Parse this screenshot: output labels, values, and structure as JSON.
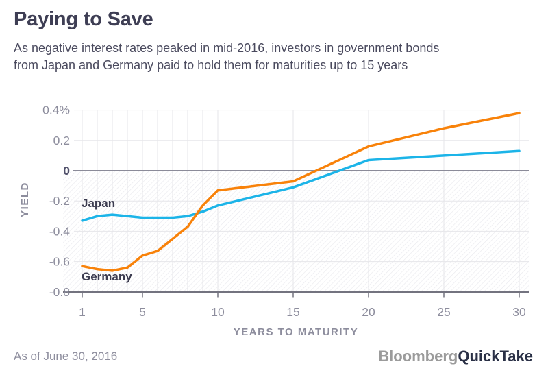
{
  "header": {
    "title": "Paying to Save",
    "subtitle_line1": "As negative interest rates peaked in mid-2016, investors in government bonds",
    "subtitle_line2": "from Japan and Germany paid to hold them for maturities up to 15 years"
  },
  "chart_data": {
    "type": "line",
    "title": "Paying to Save",
    "xlabel": "YEARS TO MATURITY",
    "ylabel": "YIELD",
    "y_unit": "percent",
    "xlim": [
      1,
      30
    ],
    "ylim": [
      -0.8,
      0.4
    ],
    "x_ticks": [
      1,
      5,
      10,
      15,
      20,
      25,
      30
    ],
    "x_gridlines": [
      1,
      2,
      3,
      4,
      5,
      6,
      7,
      8,
      9,
      10,
      15,
      20,
      25,
      30
    ],
    "y_ticks": [
      {
        "label": "0.4%",
        "value": 0.4
      },
      {
        "label": "0.2",
        "value": 0.2
      },
      {
        "label": "0",
        "value": 0,
        "emphasis": true
      },
      {
        "label": "-0.2",
        "value": -0.2
      },
      {
        "label": "-0.4",
        "value": -0.4
      },
      {
        "label": "-0.6",
        "value": -0.6
      },
      {
        "label": "-0.8",
        "value": -0.8
      }
    ],
    "x": [
      1,
      2,
      3,
      4,
      5,
      6,
      7,
      8,
      9,
      10,
      15,
      20,
      25,
      30
    ],
    "series": [
      {
        "name": "Japan",
        "color": "#1cb4e8",
        "values": [
          -0.33,
          -0.3,
          -0.29,
          -0.3,
          -0.31,
          -0.31,
          -0.31,
          -0.3,
          -0.27,
          -0.23,
          -0.11,
          0.07,
          0.1,
          0.13
        ]
      },
      {
        "name": "Germany",
        "color": "#f8820a",
        "values": [
          -0.63,
          -0.65,
          -0.66,
          -0.64,
          -0.56,
          -0.53,
          -0.45,
          -0.37,
          -0.23,
          -0.13,
          -0.07,
          0.16,
          0.28,
          0.38
        ]
      }
    ],
    "negative_region_hatched": true,
    "grid": true,
    "legend_position": "inline-labels"
  },
  "footer": {
    "as_of": "As of June 30, 2016",
    "brand_primary": "Bloomberg",
    "brand_secondary": "QuickTake"
  },
  "colors": {
    "japan_line": "#1cb4e8",
    "germany_line": "#f8820a",
    "gridline": "#e6e6ea",
    "zero_line": "#8b8b99",
    "axis_line": "#73737f",
    "hatch_line": "#e9e9ee",
    "axis_text": "#8d8d9d",
    "axis_text_emphasis": "#50506a",
    "title_text": "#3e3e54"
  }
}
